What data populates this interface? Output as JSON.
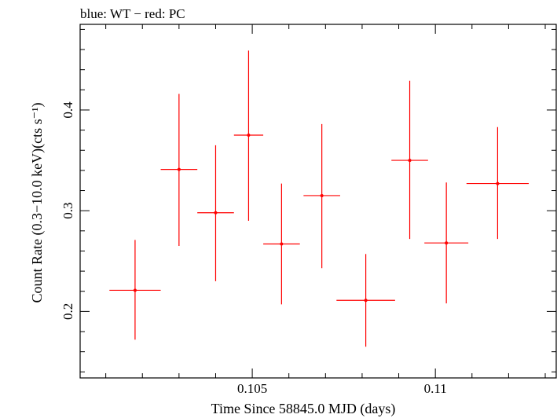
{
  "chart_data": {
    "type": "scatter",
    "title": "blue: WT − red: PC",
    "xlabel": "Time Since 58845.0 MJD (days)",
    "ylabel": "Count Rate (0.3−10.0 keV)(cts s⁻¹)",
    "xlim": [
      0.1003,
      0.1133
    ],
    "ylim": [
      0.134,
      0.485
    ],
    "x_ticks": [
      0.105,
      0.11
    ],
    "x_tick_labels": [
      "0.105",
      "0.11"
    ],
    "y_ticks": [
      0.2,
      0.3,
      0.4
    ],
    "y_tick_labels": [
      "0.2",
      "0.3",
      "0.4"
    ],
    "grid": false,
    "series": [
      {
        "color": "#ff0000",
        "points": [
          {
            "x": 0.1018,
            "xerr": 0.0007,
            "y": 0.221,
            "ylo": 0.172,
            "yhi": 0.271
          },
          {
            "x": 0.103,
            "xerr": 0.0005,
            "y": 0.341,
            "ylo": 0.265,
            "yhi": 0.416
          },
          {
            "x": 0.104,
            "xerr": 0.0005,
            "y": 0.298,
            "ylo": 0.23,
            "yhi": 0.365
          },
          {
            "x": 0.1049,
            "xerr": 0.0004,
            "y": 0.375,
            "ylo": 0.29,
            "yhi": 0.459
          },
          {
            "x": 0.1058,
            "xerr": 0.0005,
            "y": 0.267,
            "ylo": 0.207,
            "yhi": 0.327
          },
          {
            "x": 0.1069,
            "xerr": 0.0005,
            "y": 0.315,
            "ylo": 0.243,
            "yhi": 0.386
          },
          {
            "x": 0.1081,
            "xerr": 0.0008,
            "y": 0.211,
            "ylo": 0.165,
            "yhi": 0.257
          },
          {
            "x": 0.1093,
            "xerr": 0.0005,
            "y": 0.35,
            "ylo": 0.272,
            "yhi": 0.429
          },
          {
            "x": 0.1103,
            "xerr": 0.0006,
            "y": 0.268,
            "ylo": 0.208,
            "yhi": 0.328
          },
          {
            "x": 0.1117,
            "xerr": 0.00085,
            "y": 0.327,
            "ylo": 0.272,
            "yhi": 0.383
          }
        ]
      }
    ]
  }
}
